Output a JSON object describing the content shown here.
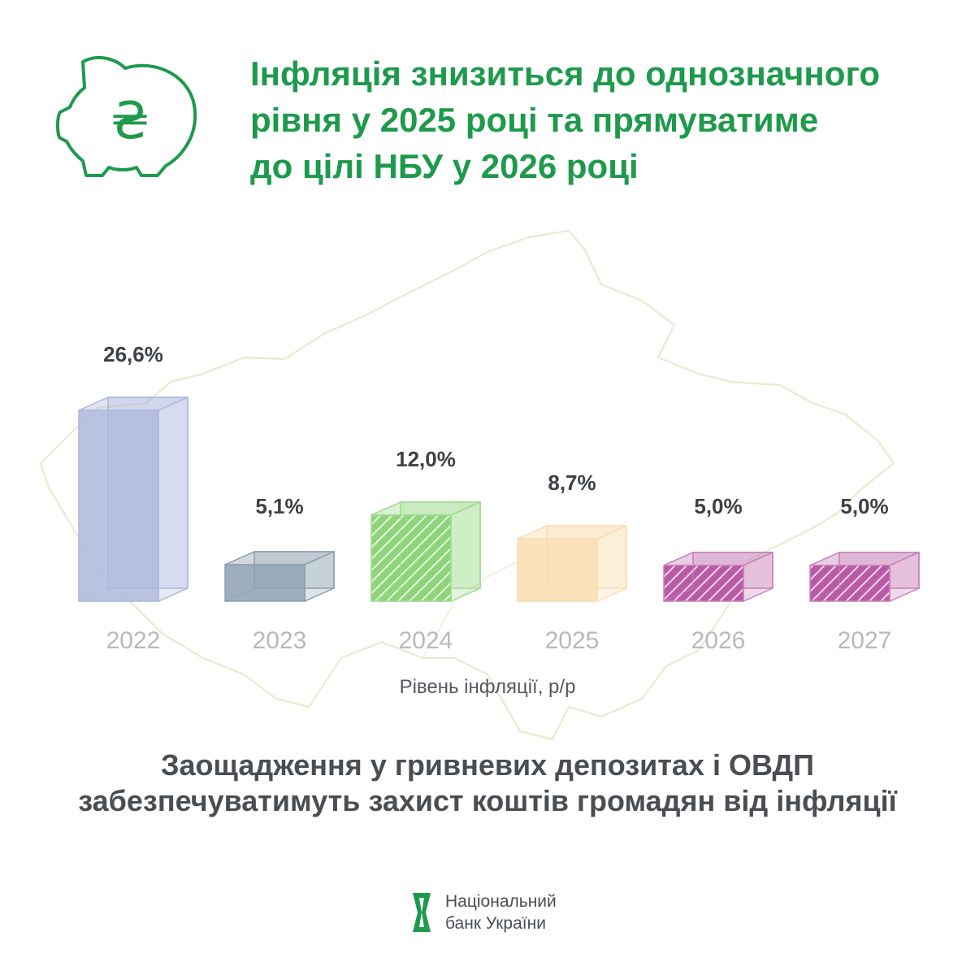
{
  "headline": {
    "line1": "Інфляція знизиться до однозначного",
    "line2": "рівня у 2025 році та прямуватиме",
    "line3": "до цілі НБУ у 2026 році"
  },
  "icon": {
    "name": "piggy-bank-hryvnia-icon",
    "symbol": "₴",
    "color": "#1e9a4c"
  },
  "chart_data": {
    "type": "bar",
    "title": "",
    "xlabel": "Рівень інфляції, р/р",
    "ylabel": "",
    "categories": [
      "2022",
      "2023",
      "2024",
      "2025",
      "2026",
      "2027"
    ],
    "values": [
      26.6,
      5.1,
      12.0,
      8.7,
      5.0,
      5.0
    ],
    "value_labels": [
      "26,6%",
      "5,1%",
      "12,0%",
      "8,7%",
      "5,0%",
      "5,0%"
    ],
    "colors": [
      "#aeb7dd",
      "#8da0b0",
      "#9fdc8e",
      "#f9ddb0",
      "#c982b8",
      "#c982b8"
    ],
    "patterns": [
      "solid",
      "solid",
      "hatched",
      "solid",
      "hatched",
      "hatched"
    ],
    "grid": false
  },
  "footer": {
    "line1": "Заощадження у гривневих депозитах і ОВДП",
    "line2": "забезпечуватимуть захист коштів громадян від інфляції"
  },
  "logo": {
    "line1": "Національний",
    "line2": "банк України",
    "name": "nbu-logo-icon",
    "color": "#1e9a4c"
  }
}
